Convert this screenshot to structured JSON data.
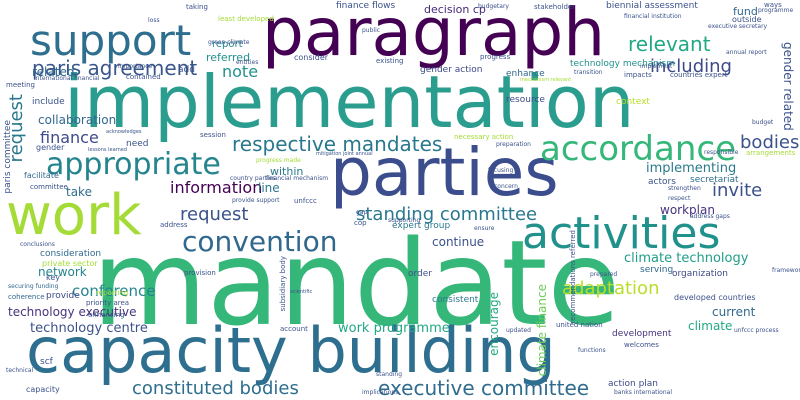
{
  "words": [
    {
      "text": "mandate",
      "color": "#35b779"
    },
    {
      "text": "implementation",
      "color": "#2a9d8f"
    },
    {
      "text": "paragraph",
      "color": "#440154"
    },
    {
      "text": "capacity building",
      "color": "#2e6e8e"
    },
    {
      "text": "parties",
      "color": "#3b4d8c"
    },
    {
      "text": "work",
      "color": "#a5db36"
    },
    {
      "text": "support",
      "color": "#2e6e8e"
    },
    {
      "text": "activities",
      "color": "#21918c"
    },
    {
      "text": "accordance",
      "color": "#35b779"
    },
    {
      "text": "appropriate",
      "color": "#25858e"
    },
    {
      "text": "convention",
      "color": "#31688e"
    },
    {
      "text": "paris agreement",
      "color": "#39568c"
    },
    {
      "text": "respective mandates",
      "color": "#2a788e"
    },
    {
      "text": "executive committee",
      "color": "#2f6c8e"
    },
    {
      "text": "constituted bodies",
      "color": "#2e6e8e"
    },
    {
      "text": "standing committee",
      "color": "#2a788e"
    },
    {
      "text": "adaptation",
      "color": "#b8de29"
    },
    {
      "text": "relevant",
      "color": "#22a884"
    },
    {
      "text": "including",
      "color": "#3e4a89"
    },
    {
      "text": "request",
      "color": "#2a788e"
    },
    {
      "text": "information",
      "color": "#3b528b"
    },
    {
      "text": "finance",
      "color": "#440154"
    },
    {
      "text": "invite",
      "color": "#3e4a89"
    },
    {
      "text": "bodies",
      "color": "#3b528b"
    },
    {
      "text": "note",
      "color": "#3b528b"
    },
    {
      "text": "implementing",
      "color": "#21918c"
    },
    {
      "text": "climate technology",
      "color": "#2a788e"
    },
    {
      "text": "technology centre",
      "color": "#1f9e89"
    },
    {
      "text": "technology executive",
      "color": "#3b528b"
    },
    {
      "text": "work programme",
      "color": "#46327e"
    },
    {
      "text": "network",
      "color": "#22a884"
    },
    {
      "text": "conference",
      "color": "#25858e"
    },
    {
      "text": "line",
      "color": "#25858e"
    },
    {
      "text": "continue",
      "color": "#2a788e"
    },
    {
      "text": "workplan",
      "color": "#3b528b"
    },
    {
      "text": "current",
      "color": "#46327e"
    },
    {
      "text": "referred",
      "color": "#31688e"
    },
    {
      "text": "related",
      "color": "#2a788e"
    },
    {
      "text": "collaboration",
      "color": "#21918c"
    },
    {
      "text": "take",
      "color": "#31688e"
    },
    {
      "text": "within",
      "color": "#31688e"
    },
    {
      "text": "efforts",
      "color": "#2e6e8e"
    },
    {
      "text": "overview",
      "color": "#2a788e"
    },
    {
      "text": "encourage",
      "color": "#22a884"
    },
    {
      "text": "climate finance",
      "color": "#6ece58"
    },
    {
      "text": "fund",
      "color": "#31688e"
    },
    {
      "text": "gender related",
      "color": "#3b528b"
    },
    {
      "text": "decision cp",
      "color": "#482878"
    },
    {
      "text": "report",
      "color": "#25858e"
    },
    {
      "text": "finance flows",
      "color": "#3b528b"
    },
    {
      "text": "biennial assessment",
      "color": "#3b528b"
    },
    {
      "text": "technology mechanism",
      "color": "#21918c"
    },
    {
      "text": "gender action",
      "color": "#3e4a89"
    },
    {
      "text": "enhance",
      "color": "#31688e"
    },
    {
      "text": "climate",
      "color": "#22a884"
    },
    {
      "text": "development",
      "color": "#46327e"
    },
    {
      "text": "context",
      "color": "#b8de29"
    },
    {
      "text": "resource",
      "color": "#3e4a89"
    },
    {
      "text": "secretariat",
      "color": "#2e6e8e"
    },
    {
      "text": "actors",
      "color": "#3b528b"
    },
    {
      "text": "expert group",
      "color": "#2a788e"
    },
    {
      "text": "private sector",
      "color": "#a5db36"
    },
    {
      "text": "consideration",
      "color": "#31688e"
    },
    {
      "text": "technical",
      "color": "#3b528b"
    },
    {
      "text": "organization",
      "color": "#3e4a89"
    },
    {
      "text": "serving",
      "color": "#31688e"
    },
    {
      "text": "developed countries",
      "color": "#3b528b"
    },
    {
      "text": "action plan",
      "color": "#3e4a89"
    },
    {
      "text": "consistent",
      "color": "#2a788e"
    },
    {
      "text": "order",
      "color": "#3b528b"
    },
    {
      "text": "provide",
      "color": "#3e4a89"
    },
    {
      "text": "coherence",
      "color": "#31688e"
    },
    {
      "text": "key",
      "color": "#3b528b"
    },
    {
      "text": "priority area",
      "color": "#3b528b"
    },
    {
      "text": "securing funding",
      "color": "#31688e"
    },
    {
      "text": "scf",
      "color": "#3b528b"
    },
    {
      "text": "paris committee",
      "color": "#3b528b"
    },
    {
      "text": "facilitate",
      "color": "#31688e"
    },
    {
      "text": "committee",
      "color": "#3b528b"
    },
    {
      "text": "gender",
      "color": "#3b528b"
    },
    {
      "text": "include",
      "color": "#3b528b"
    },
    {
      "text": "need",
      "color": "#3b528b"
    },
    {
      "text": "add",
      "color": "#3b528b"
    },
    {
      "text": "consider",
      "color": "#3b528b"
    },
    {
      "text": "progress",
      "color": "#3b528b"
    },
    {
      "text": "existing",
      "color": "#3b528b"
    },
    {
      "text": "contained",
      "color": "#3b528b"
    },
    {
      "text": "address",
      "color": "#3b528b"
    },
    {
      "text": "entities",
      "color": "#3b528b"
    },
    {
      "text": "capacity",
      "color": "#3b528b"
    },
    {
      "text": "united nation",
      "color": "#3b528b"
    },
    {
      "text": "welcomes",
      "color": "#3b528b"
    },
    {
      "text": "account",
      "color": "#3b528b"
    },
    {
      "text": "reporting",
      "color": "#a5db36"
    },
    {
      "text": "enhancing",
      "color": "#3b528b"
    },
    {
      "text": "provision",
      "color": "#3b528b"
    },
    {
      "text": "conclusions",
      "color": "#3b528b"
    },
    {
      "text": "meeting",
      "color": "#3b528b"
    },
    {
      "text": "taking",
      "color": "#3b528b"
    },
    {
      "text": "least developed",
      "color": "#a5db36"
    },
    {
      "text": "stakeholder",
      "color": "#3b528b"
    },
    {
      "text": "financial institution",
      "color": "#3b528b"
    },
    {
      "text": "executive secretary",
      "color": "#3b528b"
    },
    {
      "text": "outside",
      "color": "#3b528b"
    },
    {
      "text": "countries expert",
      "color": "#3b528b"
    },
    {
      "text": "impacts",
      "color": "#3b528b"
    },
    {
      "text": "international financial",
      "color": "#3b528b"
    },
    {
      "text": "green climate",
      "color": "#3b528b"
    },
    {
      "text": "importance",
      "color": "#3b528b"
    },
    {
      "text": "subsidiary body",
      "color": "#3b528b"
    },
    {
      "text": "progress made",
      "color": "#a5db36"
    },
    {
      "text": "country parties",
      "color": "#3b528b"
    },
    {
      "text": "financial mechanism",
      "color": "#3b528b"
    },
    {
      "text": "provide support",
      "color": "#3b528b"
    },
    {
      "text": "unfccc",
      "color": "#3b528b"
    },
    {
      "text": "cop",
      "color": "#3b528b"
    },
    {
      "text": "focusing",
      "color": "#3b528b"
    },
    {
      "text": "responsible",
      "color": "#3b528b"
    },
    {
      "text": "strengthen",
      "color": "#3b528b"
    },
    {
      "text": "respect",
      "color": "#3b528b"
    },
    {
      "text": "gap",
      "color": "#3b528b"
    },
    {
      "text": "supporting",
      "color": "#3b528b"
    },
    {
      "text": "ensure",
      "color": "#3b528b"
    },
    {
      "text": "address gaps",
      "color": "#3b528b"
    },
    {
      "text": "prepared",
      "color": "#3b528b"
    },
    {
      "text": "updated",
      "color": "#3b528b"
    },
    {
      "text": "functions",
      "color": "#3b528b"
    },
    {
      "text": "implications",
      "color": "#3b528b"
    },
    {
      "text": "banks international",
      "color": "#3b528b"
    },
    {
      "text": "standing",
      "color": "#3b528b"
    },
    {
      "text": "unfccc process",
      "color": "#3b528b"
    },
    {
      "text": "lessons learned",
      "color": "#3b528b"
    },
    {
      "text": "session",
      "color": "#3b528b"
    },
    {
      "text": "acknowledges",
      "color": "#3b528b"
    },
    {
      "text": "necessary action",
      "color": "#a5db36"
    },
    {
      "text": "mitigation joint annual",
      "color": "#3b528b"
    },
    {
      "text": "concern",
      "color": "#3b528b"
    },
    {
      "text": "preparation",
      "color": "#3b528b"
    },
    {
      "text": "mechanism relevant",
      "color": "#a5db36"
    },
    {
      "text": "transition",
      "color": "#3b528b"
    },
    {
      "text": "implement",
      "color": "#3b528b"
    },
    {
      "text": "annual report",
      "color": "#3b528b"
    },
    {
      "text": "budget",
      "color": "#3b528b"
    },
    {
      "text": "public",
      "color": "#3b528b"
    },
    {
      "text": "loss",
      "color": "#3b528b"
    },
    {
      "text": "budgetary",
      "color": "#3b528b"
    },
    {
      "text": "ways",
      "color": "#3b528b"
    },
    {
      "text": "programme",
      "color": "#3b528b"
    },
    {
      "text": "recommendations referred",
      "color": "#3b528b"
    },
    {
      "text": "framework",
      "color": "#3b528b"
    },
    {
      "text": "arrangements",
      "color": "#a5db36"
    },
    {
      "text": "scientific",
      "color": "#3b528b"
    },
    {
      "text": "technical",
      "color": "#3b528b"
    }
  ]
}
